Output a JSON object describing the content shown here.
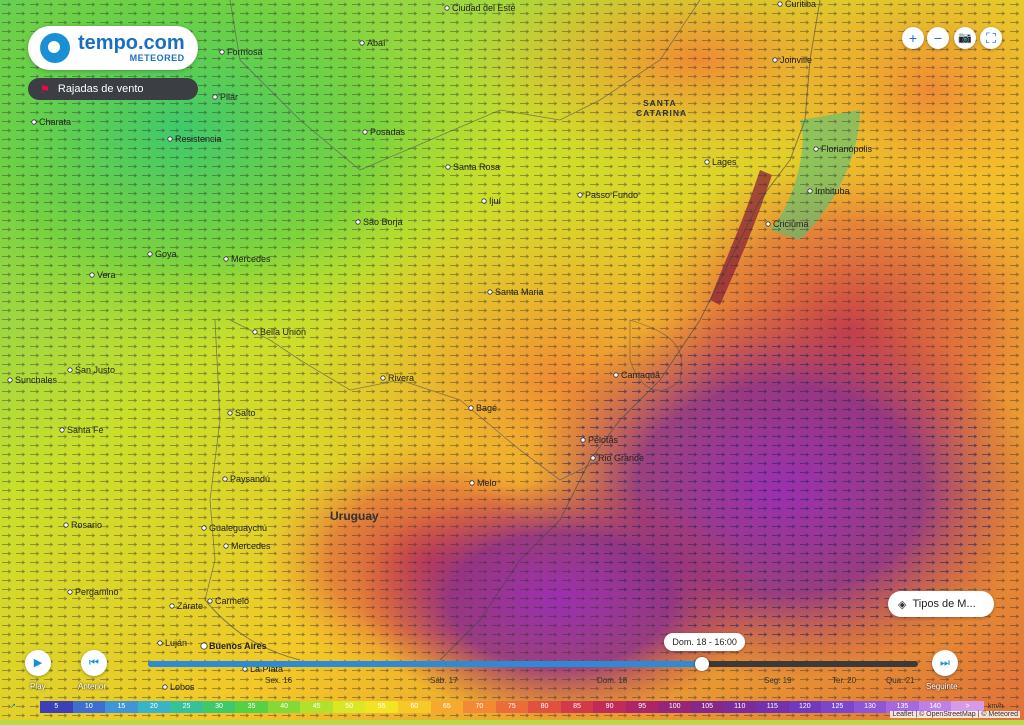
{
  "brand": {
    "name": "tempo.com",
    "sub": "METEORED"
  },
  "layer": {
    "label": "Rajadas de vento"
  },
  "map_controls": [
    {
      "name": "zoom-in-button",
      "label": "+"
    },
    {
      "name": "zoom-out-button",
      "label": "−"
    },
    {
      "name": "screenshot-button",
      "label": "📷"
    },
    {
      "name": "fullscreen-button",
      "label": "⛶"
    }
  ],
  "map_types_button": {
    "label": "Tipos de M..."
  },
  "labels": {
    "country": "Uruguay",
    "state": [
      "SANTA",
      "CATARINA"
    ]
  },
  "cities": [
    {
      "name": "Ciudad del Este"
    },
    {
      "name": "Curitiba"
    },
    {
      "name": "Formosa"
    },
    {
      "name": "Abaí"
    },
    {
      "name": "Pilar"
    },
    {
      "name": "Joinville"
    },
    {
      "name": "Charata"
    },
    {
      "name": "Resistencia"
    },
    {
      "name": "Posadas"
    },
    {
      "name": "Florianópolis"
    },
    {
      "name": "Lages"
    },
    {
      "name": "Santa Rosa"
    },
    {
      "name": "Passo Fundo"
    },
    {
      "name": "Imbituba"
    },
    {
      "name": "Ijuí"
    },
    {
      "name": "São Borja"
    },
    {
      "name": "Criciúma"
    },
    {
      "name": "Goya"
    },
    {
      "name": "Mercedes"
    },
    {
      "name": "Vera"
    },
    {
      "name": "Santa Maria"
    },
    {
      "name": "Bella Unión"
    },
    {
      "name": "San Justo"
    },
    {
      "name": "Sunchales"
    },
    {
      "name": "Rivera"
    },
    {
      "name": "Camaquã"
    },
    {
      "name": "Salto"
    },
    {
      "name": "Santa Fe"
    },
    {
      "name": "Bagé"
    },
    {
      "name": "Pelotas"
    },
    {
      "name": "Rio Grande"
    },
    {
      "name": "Paysandú"
    },
    {
      "name": "Melo"
    },
    {
      "name": "Rosario"
    },
    {
      "name": "Gualeguaychú"
    },
    {
      "name": "Mercedes"
    },
    {
      "name": "Pergamino"
    },
    {
      "name": "Zárate"
    },
    {
      "name": "Carmelo"
    },
    {
      "name": "Luján"
    },
    {
      "name": "Buenos Aires"
    },
    {
      "name": "La Plata"
    },
    {
      "name": "Lobos"
    }
  ],
  "player": {
    "play_label": "Play",
    "prev_label": "Anterior",
    "next_label": "Seguinte",
    "current_time": "Dom. 18 - 16:00",
    "progress": 0.72,
    "days": [
      {
        "label": "Sex. 16"
      },
      {
        "label": "Sáb. 17"
      },
      {
        "label": "Dom. 18"
      },
      {
        "label": "Seg. 19"
      },
      {
        "label": "Ter. 20"
      },
      {
        "label": "Qua. 21"
      }
    ]
  },
  "legend": {
    "unit": "km/h",
    "values": [
      "5",
      "10",
      "15",
      "20",
      "25",
      "30",
      "35",
      "40",
      "45",
      "50",
      "55",
      "60",
      "65",
      "70",
      "75",
      "80",
      "85",
      "90",
      "95",
      "100",
      "105",
      "110",
      "115",
      "120",
      "125",
      "130",
      "135",
      "140",
      ">"
    ],
    "colors": [
      "#3b3fb8",
      "#3e6fd0",
      "#3f95d8",
      "#38b3c9",
      "#35c29a",
      "#3fc96b",
      "#58d045",
      "#85d936",
      "#b2e02d",
      "#dbe627",
      "#f3e325",
      "#f7c928",
      "#f6a92f",
      "#f28934",
      "#ec6b3a",
      "#e05140",
      "#d13a49",
      "#bf2c58",
      "#aa2668",
      "#962678",
      "#86278a",
      "#7b2b9b",
      "#7431ab",
      "#7238bd",
      "#7b45cc",
      "#8e55d6",
      "#a568de",
      "#c07fe4",
      "#d59ae8"
    ]
  },
  "attribution": "Leaflet | © OpenStreetMap | © Meteored"
}
